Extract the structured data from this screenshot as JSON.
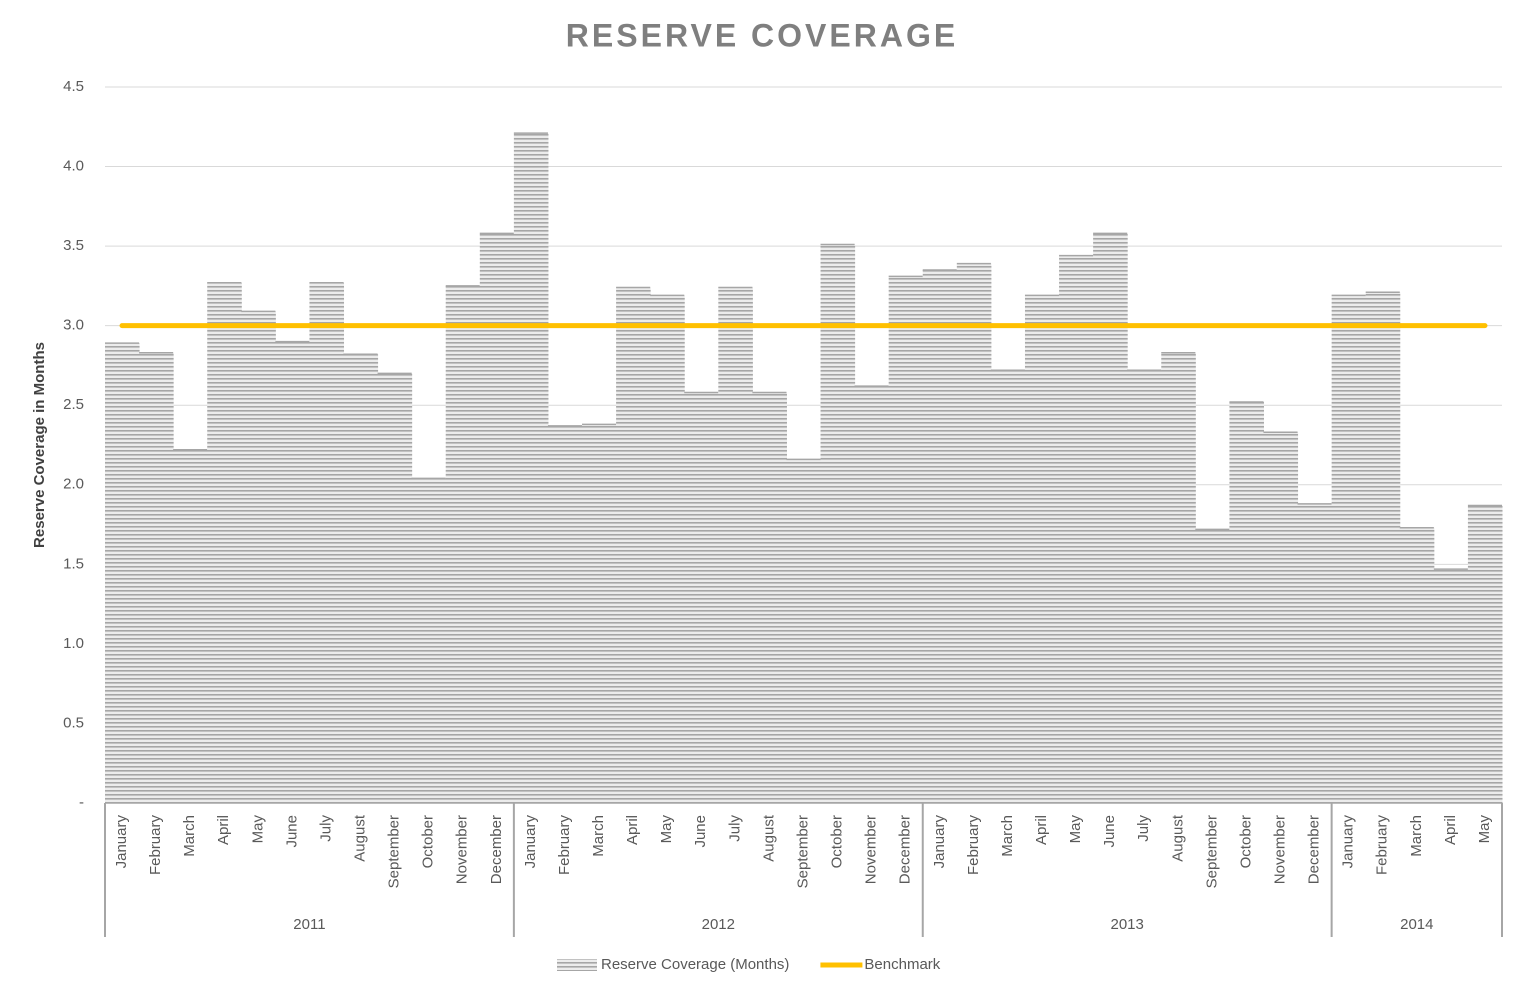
{
  "chart_data": {
    "type": "bar",
    "title": "RESERVE COVERAGE",
    "y_label": "Reserve Coverage in Months",
    "groups": [
      {
        "name": "2011",
        "categories": [
          "January",
          "February",
          "March",
          "April",
          "May",
          "June",
          "July",
          "August",
          "September",
          "October",
          "November",
          "December"
        ]
      },
      {
        "name": "2012",
        "categories": [
          "January",
          "February",
          "March",
          "April",
          "May",
          "June",
          "July",
          "August",
          "September",
          "October",
          "November",
          "December"
        ]
      },
      {
        "name": "2013",
        "categories": [
          "January",
          "February",
          "March",
          "April",
          "May",
          "June",
          "July",
          "August",
          "September",
          "October",
          "November",
          "December"
        ]
      },
      {
        "name": "2014",
        "categories": [
          "January",
          "February",
          "March",
          "April",
          "May"
        ]
      }
    ],
    "series": [
      {
        "name": "Reserve Coverage (Months)",
        "type": "bar",
        "color": "#a6a6a6",
        "pattern": "horizontal-stripes",
        "values": [
          2.89,
          2.83,
          2.22,
          3.27,
          3.09,
          2.9,
          3.27,
          2.82,
          2.7,
          2.04,
          3.25,
          3.58,
          4.21,
          2.37,
          2.38,
          3.24,
          3.19,
          2.58,
          3.24,
          2.58,
          2.16,
          3.51,
          2.62,
          3.31,
          3.35,
          3.39,
          2.72,
          3.19,
          3.44,
          3.58,
          2.72,
          2.83,
          1.72,
          2.52,
          2.33,
          1.88,
          3.19,
          3.21,
          1.73,
          1.47,
          1.87
        ]
      },
      {
        "name": "Benchmark",
        "type": "line",
        "color": "#ffc000",
        "values": [
          3,
          3,
          3,
          3,
          3,
          3,
          3,
          3,
          3,
          3,
          3,
          3,
          3,
          3,
          3,
          3,
          3,
          3,
          3,
          3,
          3,
          3,
          3,
          3,
          3,
          3,
          3,
          3,
          3,
          3,
          3,
          3,
          3,
          3,
          3,
          3,
          3,
          3,
          3,
          3,
          3
        ]
      }
    ],
    "ylim": [
      0,
      4.5
    ],
    "yticks": [
      {
        "value": 0,
        "label": "-"
      },
      0.5,
      {
        "value": 1,
        "label": "1.0"
      },
      1.5,
      {
        "value": 2,
        "label": "2.0"
      },
      2.5,
      {
        "value": 3,
        "label": "3.0"
      },
      3.5,
      {
        "value": 4,
        "label": "4.0"
      },
      4.5
    ],
    "grid": true,
    "legend": "bottom"
  }
}
